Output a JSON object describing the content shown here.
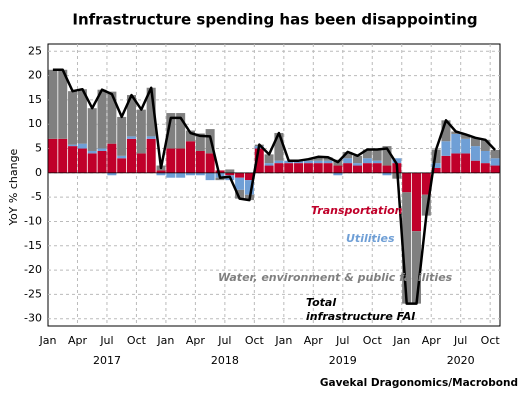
{
  "chart_data": {
    "type": "bar",
    "stacked": true,
    "title": "Infrastructure spending has been disappointing",
    "y_label": "YoY % change",
    "source": "Gavekal Dragonomics/Macrobond",
    "categories": [
      "Jan",
      null,
      null,
      "Apr",
      null,
      null,
      "Jul",
      null,
      null,
      "Oct",
      null,
      null,
      "Jan",
      null,
      null,
      "Apr",
      null,
      null,
      "Jul",
      null,
      null,
      "Oct",
      null,
      null,
      "Jan",
      null,
      null,
      "Apr",
      null,
      null,
      "Jul",
      null,
      null,
      "Oct",
      null,
      null,
      "Jan",
      null,
      null,
      "Apr",
      null,
      null,
      "Jul",
      null,
      null,
      "Oct"
    ],
    "years": [
      "2017",
      "2018",
      "2019",
      "2020"
    ],
    "ylim": [
      -31.5,
      26.5
    ],
    "yticks": [
      -30,
      -25,
      -20,
      -15,
      -10,
      -5,
      0,
      5,
      10,
      15,
      20,
      25
    ],
    "grid": true,
    "series": [
      {
        "name": "Transportation",
        "type": "bar",
        "color": "#c0002a",
        "values": [
          7,
          7,
          5.5,
          5,
          4,
          4.5,
          6,
          3,
          7,
          4,
          7,
          0.5,
          5,
          5,
          6.5,
          4.5,
          4,
          0.5,
          -0.5,
          -1,
          -1.5,
          5,
          1.5,
          2,
          2,
          2,
          2,
          2,
          2,
          1.5,
          2,
          1.5,
          2,
          2,
          1.5,
          2,
          -4,
          -12,
          -4.5,
          1,
          3.5,
          4,
          4,
          2.5,
          2,
          1.5
        ]
      },
      {
        "name": "Utilities",
        "type": "bar",
        "color": "#6f9fd6",
        "values": [
          0,
          0,
          0.3,
          1,
          0.5,
          0.5,
          -0.5,
          0.5,
          0.5,
          0,
          0.5,
          -0.5,
          -1,
          -1,
          -0.5,
          -0.5,
          -1.5,
          -1,
          -1,
          -2.5,
          -3,
          0.5,
          0.5,
          0.5,
          0.5,
          0.5,
          0.5,
          0.5,
          0.5,
          -0.5,
          1,
          0.5,
          1,
          0.5,
          -0.5,
          1,
          0,
          0,
          0,
          1,
          3,
          4,
          3,
          3,
          2.5,
          1.5
        ]
      },
      {
        "name": "Water, environment & public facilities",
        "type": "bar",
        "color": "#808080",
        "values": [
          14.2,
          14.2,
          11,
          11.2,
          8.8,
          12.1,
          10.7,
          8,
          8.5,
          9,
          10,
          1,
          7.3,
          7.3,
          2.2,
          3.6,
          5,
          -0.5,
          0.7,
          -1.8,
          -1.1,
          0.3,
          1.8,
          5.7,
          0,
          0,
          0.3,
          0.8,
          0.7,
          1.2,
          1.3,
          1.5,
          1.8,
          2.3,
          4,
          -1.2,
          -22.9,
          -14.9,
          -4.3,
          2.8,
          4.3,
          0.5,
          0.9,
          1.7,
          2.3,
          1.7
        ]
      },
      {
        "name": "Total infrastructure FAI",
        "type": "line",
        "color": "#000000",
        "values": [
          21.2,
          21.2,
          16.8,
          17.2,
          13.3,
          17.1,
          16.2,
          11.5,
          16,
          13,
          17.5,
          1,
          11.3,
          11.3,
          8.2,
          7.6,
          7.5,
          -1,
          -0.8,
          -5.3,
          -5.6,
          5.8,
          3.8,
          8.2,
          2.5,
          2.5,
          2.8,
          3.3,
          3.2,
          2.2,
          4.3,
          3.5,
          4.8,
          4.8,
          5,
          1.8,
          -26.9,
          -26.9,
          -8.8,
          4.8,
          10.8,
          8.5,
          7.9,
          7.2,
          6.8,
          4.7
        ]
      }
    ]
  }
}
